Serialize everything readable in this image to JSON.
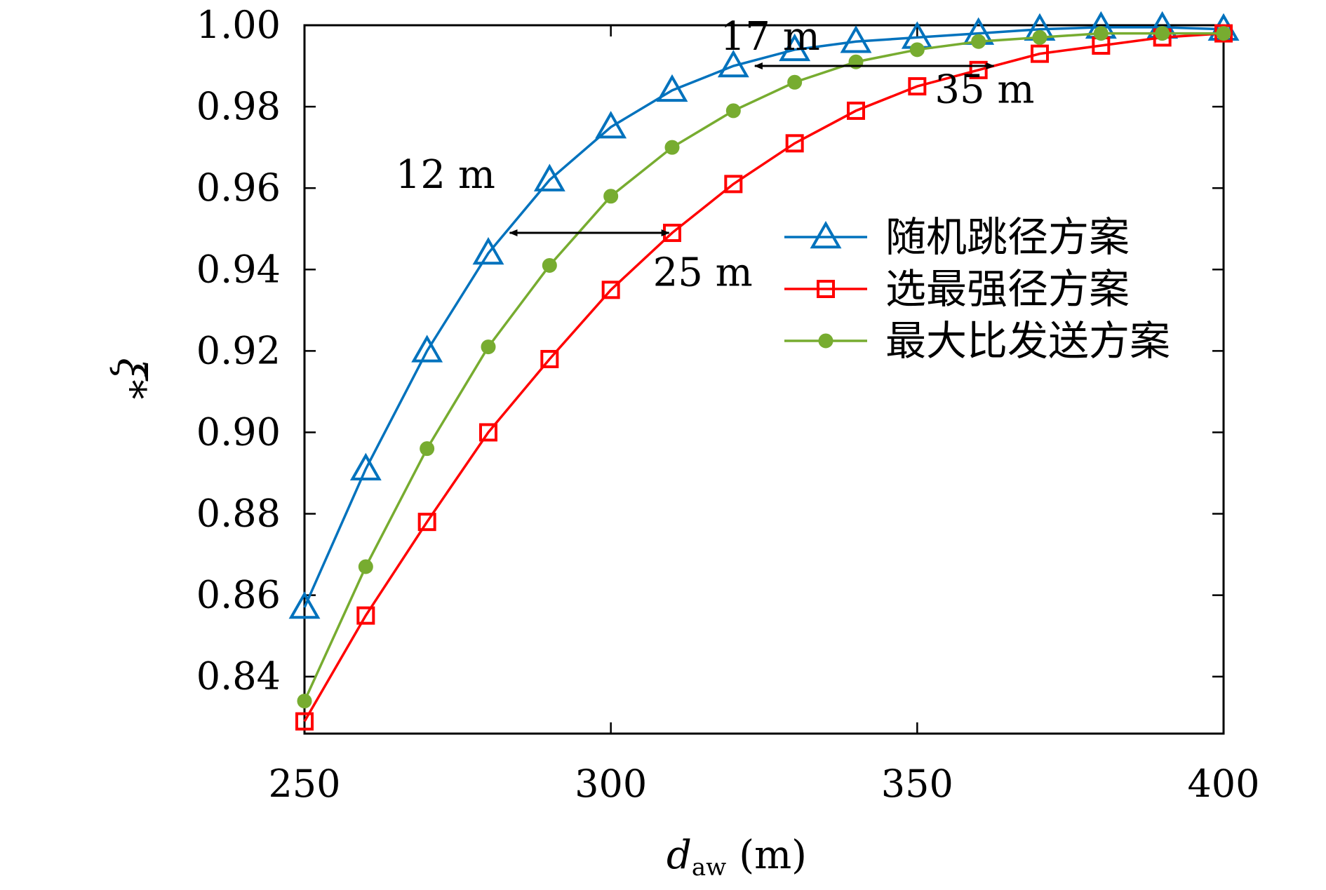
{
  "chart_data": {
    "type": "line",
    "xlabel": {
      "main": "d",
      "sub": "aw",
      "unit": "(m)"
    },
    "ylabel": "ξ̄*",
    "xlim": [
      250,
      400
    ],
    "ylim": [
      0.826,
      1.0
    ],
    "xticks": [
      250,
      300,
      350,
      400
    ],
    "yticks": [
      0.84,
      0.86,
      0.88,
      0.9,
      0.92,
      0.94,
      0.96,
      0.98,
      1.0
    ],
    "grid": false,
    "legend_position": "right-middle",
    "x": [
      250,
      260,
      270,
      280,
      290,
      300,
      310,
      320,
      330,
      340,
      350,
      360,
      370,
      380,
      390,
      400
    ],
    "series": [
      {
        "name": "随机跳径方案",
        "color": "#0072BD",
        "marker": "triangle",
        "values": [
          0.857,
          0.891,
          0.92,
          0.944,
          0.962,
          0.975,
          0.984,
          0.99,
          0.994,
          0.996,
          0.997,
          0.998,
          0.999,
          0.9995,
          0.9995,
          0.999
        ]
      },
      {
        "name": "选最强径方案",
        "color": "#FF0000",
        "marker": "square",
        "values": [
          0.829,
          0.855,
          0.878,
          0.9,
          0.918,
          0.935,
          0.949,
          0.961,
          0.971,
          0.979,
          0.985,
          0.989,
          0.993,
          0.995,
          0.997,
          0.998
        ]
      },
      {
        "name": "最大比发送方案",
        "color": "#77AC30",
        "marker": "circle",
        "values": [
          0.834,
          0.867,
          0.896,
          0.921,
          0.941,
          0.958,
          0.97,
          0.979,
          0.986,
          0.991,
          0.994,
          0.996,
          0.997,
          0.998,
          0.998,
          0.998
        ]
      }
    ],
    "annotations": [
      {
        "text": "12 m",
        "label_at": [
          273,
          0.96
        ]
      },
      {
        "text": "25 m",
        "label_at": [
          315,
          0.936
        ]
      },
      {
        "text": "17 m",
        "label_at": [
          326,
          0.994
        ]
      },
      {
        "text": "35 m",
        "label_at": [
          361,
          0.981
        ]
      }
    ],
    "arrows": [
      {
        "y": 0.949,
        "x_from": 283.5,
        "x_to": 309.5
      },
      {
        "y": 0.99,
        "x_from": 323.5,
        "x_to": 362.5
      }
    ]
  }
}
